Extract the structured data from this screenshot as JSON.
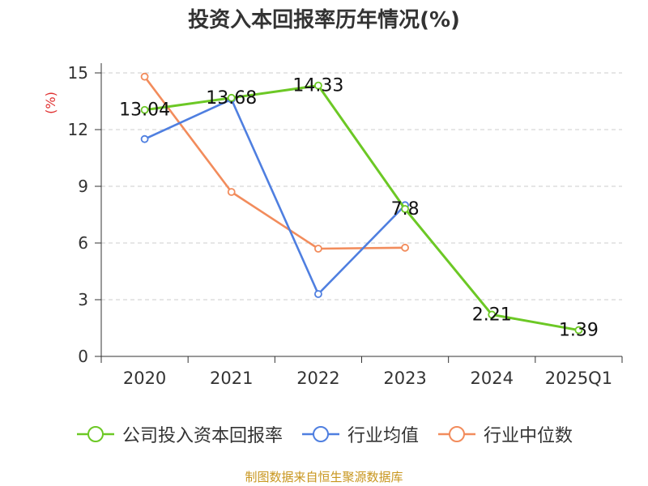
{
  "colors": {
    "company": "#6cc825",
    "industry_avg": "#4f7fe0",
    "industry_median": "#f28c5c",
    "axis": "#333333",
    "grid": "#cccccc",
    "unit": "#e03030",
    "source": "#c8961e"
  },
  "chart_data": {
    "type": "line",
    "title": "投资入本回报率历年情况(%)",
    "ylabel": "(%)",
    "xlabel": "",
    "ylim": [
      0,
      15
    ],
    "yticks": [
      0,
      3,
      6,
      9,
      12,
      15
    ],
    "categories": [
      "2020",
      "2021",
      "2022",
      "2023",
      "2024",
      "2025Q1"
    ],
    "series": [
      {
        "name": "公司投入资本回报率",
        "key": "company",
        "values": [
          13.04,
          13.68,
          14.33,
          7.8,
          2.21,
          1.39
        ],
        "labels": [
          "13.04",
          "13.68",
          "14.33",
          "7.8",
          "2.21",
          "1.39"
        ]
      },
      {
        "name": "行业均值",
        "key": "industry_avg",
        "values": [
          11.5,
          13.6,
          3.3,
          8.0,
          null,
          null
        ]
      },
      {
        "name": "行业中位数",
        "key": "industry_median",
        "values": [
          14.8,
          8.7,
          5.7,
          5.75,
          null,
          null
        ]
      }
    ],
    "legend_position": "bottom",
    "grid": true
  },
  "source": "制图数据来自恒生聚源数据库"
}
